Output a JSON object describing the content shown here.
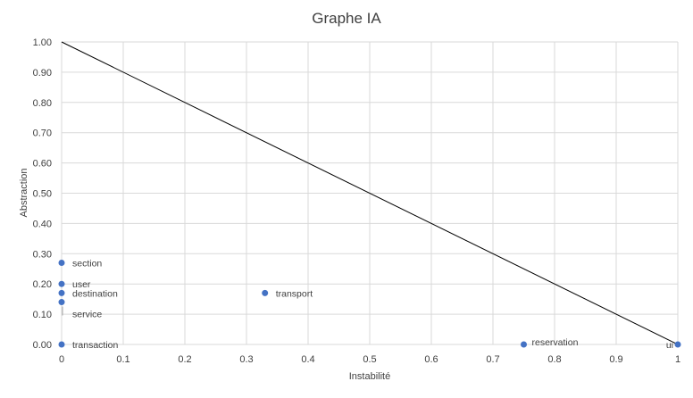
{
  "chart_data": {
    "type": "scatter",
    "title": "Graphe IA",
    "xlabel": "Instabilité",
    "ylabel": "Abstraction",
    "xlim": [
      0,
      1
    ],
    "ylim": [
      0,
      1
    ],
    "x_ticks": [
      "0",
      "0.1",
      "0.2",
      "0.3",
      "0.4",
      "0.5",
      "0.6",
      "0.7",
      "0.8",
      "0.9",
      "1"
    ],
    "y_ticks": [
      "0.00",
      "0.10",
      "0.20",
      "0.30",
      "0.40",
      "0.50",
      "0.60",
      "0.70",
      "0.80",
      "0.90",
      "1.00"
    ],
    "grid": true,
    "legend": "none",
    "point_color": "#4472c4",
    "reference_line": {
      "from": [
        0,
        1
      ],
      "to": [
        1,
        0
      ],
      "color": "#000000"
    },
    "points": [
      {
        "label": "section",
        "x": 0,
        "y": 0.27
      },
      {
        "label": "user",
        "x": 0,
        "y": 0.2
      },
      {
        "label": "destination",
        "x": 0,
        "y": 0.17
      },
      {
        "label": "service",
        "x": 0,
        "y": 0.14
      },
      {
        "label": "transaction",
        "x": 0,
        "y": 0
      },
      {
        "label": "transport",
        "x": 0.33,
        "y": 0.17
      },
      {
        "label": "reservation",
        "x": 0.75,
        "y": 0
      },
      {
        "label": "ui",
        "x": 1,
        "y": 0
      }
    ]
  }
}
